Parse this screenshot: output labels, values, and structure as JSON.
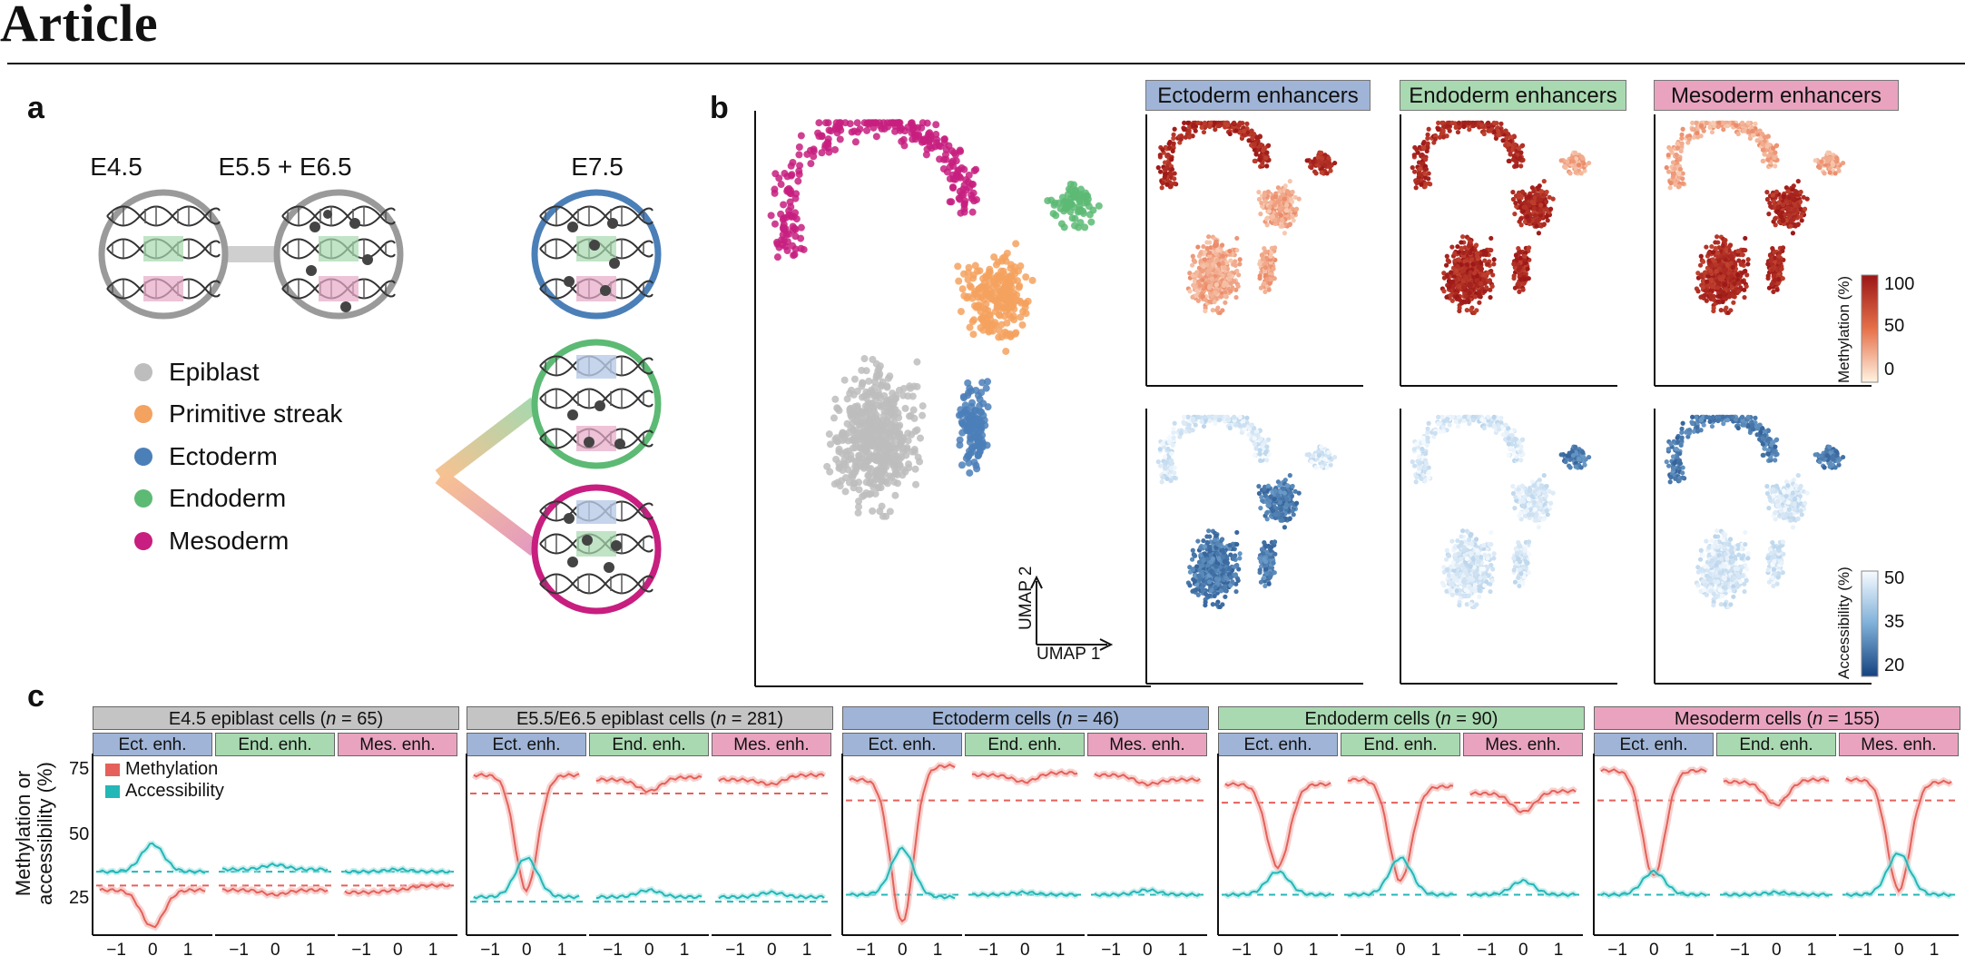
{
  "header": {
    "title": "Article"
  },
  "panel_labels": {
    "a": "a",
    "b": "b",
    "c": "c"
  },
  "panel_a": {
    "stages": [
      "E4.5",
      "E5.5 + E6.5",
      "E7.5"
    ],
    "legend": [
      {
        "label": "Epiblast",
        "color": "#bdbdbd"
      },
      {
        "label": "Primitive streak",
        "color": "#f4a25f"
      },
      {
        "label": "Ectoderm",
        "color": "#4b7fb8"
      },
      {
        "label": "Endoderm",
        "color": "#5cba74"
      },
      {
        "label": "Mesoderm",
        "color": "#c71e7f"
      }
    ]
  },
  "panel_b": {
    "headers": [
      {
        "label": "Ectoderm enhancers",
        "color": "#9fb4d6"
      },
      {
        "label": "Endoderm enhancers",
        "color": "#a9d9b1"
      },
      {
        "label": "Mesoderm enhancers",
        "color": "#e9a3bf"
      }
    ],
    "axis": {
      "x": "UMAP 1",
      "y": "UMAP 2"
    },
    "methylation_bar": {
      "title": "Methylation (%)",
      "ticks": [
        "100",
        "50",
        "0"
      ]
    },
    "accessibility_bar": {
      "title": "Accessibility (%)",
      "ticks": [
        "50",
        "35",
        "20"
      ]
    }
  },
  "panel_c": {
    "y_label": "Methylation or accessibility (%)",
    "y_ticks": [
      "75",
      "50",
      "25"
    ],
    "x_ticks": [
      "−1",
      "0",
      "1"
    ],
    "legend": [
      {
        "label": "Methylation",
        "color": "#e5605a"
      },
      {
        "label": "Accessibility",
        "color": "#23b7b7"
      }
    ],
    "sub_headers": [
      {
        "label": "Ect. enh.",
        "color": "#9fb4d6"
      },
      {
        "label": "End. enh.",
        "color": "#a9d9b1"
      },
      {
        "label": "Mes. enh.",
        "color": "#e9a3bf"
      }
    ],
    "groups": [
      {
        "title_pre": "E4.5 epiblast cells (",
        "n_label": "n",
        "n_value": " = 65)",
        "color": "#c4c4c4"
      },
      {
        "title_pre": "E5.5/E6.5 epiblast cells (",
        "n_label": "n",
        "n_value": " = 281)",
        "color": "#c4c4c4"
      },
      {
        "title_pre": "Ectoderm cells (",
        "n_label": "n",
        "n_value": " = 46)",
        "color": "#9fb4d6"
      },
      {
        "title_pre": "Endoderm cells (",
        "n_label": "n",
        "n_value": " = 90)",
        "color": "#a9d9b1"
      },
      {
        "title_pre": "Mesoderm cells (",
        "n_label": "n",
        "n_value": " = 155)",
        "color": "#e9a3bf"
      }
    ]
  },
  "chart_data": {
    "type": "line",
    "x": [
      -1,
      0,
      1
    ],
    "ylabel": "Methylation or accessibility (%)",
    "series_names": [
      "Methylation",
      "Accessibility"
    ],
    "panels": [
      {
        "group": "E4.5",
        "enh": "Ect.",
        "methylation": [
          28,
          12,
          28
        ],
        "accessibility": [
          36,
          48,
          36
        ],
        "met_ref": 30,
        "acc_ref": 36
      },
      {
        "group": "E4.5",
        "enh": "End.",
        "methylation": [
          28,
          26,
          28
        ],
        "accessibility": [
          37,
          39,
          37
        ],
        "met_ref": 30,
        "acc_ref": 36
      },
      {
        "group": "E4.5",
        "enh": "Mes.",
        "methylation": [
          27,
          28,
          30
        ],
        "accessibility": [
          36,
          37,
          36
        ],
        "met_ref": 30,
        "acc_ref": 36
      },
      {
        "group": "E5.5/E6.5",
        "enh": "Ect.",
        "methylation": [
          78,
          28,
          78
        ],
        "accessibility": [
          25,
          42,
          25
        ],
        "met_ref": 70,
        "acc_ref": 23
      },
      {
        "group": "E5.5/E6.5",
        "enh": "End.",
        "methylation": [
          76,
          71,
          77
        ],
        "accessibility": [
          25,
          28,
          25
        ],
        "met_ref": 70,
        "acc_ref": 23
      },
      {
        "group": "E5.5/E6.5",
        "enh": "Mes.",
        "methylation": [
          76,
          74,
          78
        ],
        "accessibility": [
          25,
          27,
          25
        ],
        "met_ref": 70,
        "acc_ref": 23
      },
      {
        "group": "Ectoderm",
        "enh": "Ect.",
        "methylation": [
          76,
          14,
          82
        ],
        "accessibility": [
          26,
          46,
          25
        ],
        "met_ref": 67,
        "acc_ref": 26
      },
      {
        "group": "Ectoderm",
        "enh": "End.",
        "methylation": [
          78,
          75,
          79
        ],
        "accessibility": [
          26,
          27,
          26
        ],
        "met_ref": 67,
        "acc_ref": 26
      },
      {
        "group": "Ectoderm",
        "enh": "Mes.",
        "methylation": [
          78,
          74,
          76
        ],
        "accessibility": [
          26,
          28,
          26
        ],
        "met_ref": 67,
        "acc_ref": 26
      },
      {
        "group": "Endoderm",
        "enh": "Ect.",
        "methylation": [
          74,
          38,
          74
        ],
        "accessibility": [
          26,
          36,
          26
        ],
        "met_ref": 66,
        "acc_ref": 26
      },
      {
        "group": "Endoderm",
        "enh": "End.",
        "methylation": [
          76,
          32,
          73
        ],
        "accessibility": [
          26,
          42,
          26
        ],
        "met_ref": 66,
        "acc_ref": 26
      },
      {
        "group": "Endoderm",
        "enh": "Mes.",
        "methylation": [
          70,
          62,
          71
        ],
        "accessibility": [
          26,
          32,
          26
        ],
        "met_ref": 66,
        "acc_ref": 26
      },
      {
        "group": "Mesoderm",
        "enh": "Ect.",
        "methylation": [
          80,
          34,
          80
        ],
        "accessibility": [
          26,
          36,
          26
        ],
        "met_ref": 67,
        "acc_ref": 26
      },
      {
        "group": "Mesoderm",
        "enh": "End.",
        "methylation": [
          75,
          65,
          76
        ],
        "accessibility": [
          26,
          27,
          26
        ],
        "met_ref": 67,
        "acc_ref": 26
      },
      {
        "group": "Mesoderm",
        "enh": "Mes.",
        "methylation": [
          76,
          28,
          75
        ],
        "accessibility": [
          26,
          44,
          26
        ],
        "met_ref": 67,
        "acc_ref": 26
      }
    ]
  }
}
